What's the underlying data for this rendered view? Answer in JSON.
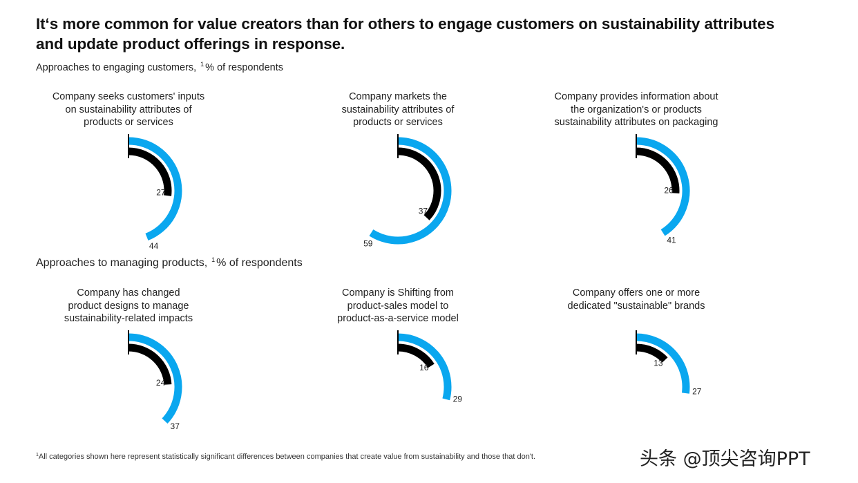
{
  "title_lines": [
    "It‘s more common for value creators than for others to engage customers on sustainability attributes",
    "and update product offerings in response."
  ],
  "section1": {
    "label": "Approaches to engaging customers,",
    "sup": "1",
    "suffix": "% of respondents"
  },
  "section2": {
    "label": "Approaches to managing products,",
    "sup": "1",
    "suffix": "% of respondents"
  },
  "colors": {
    "value_creators": "#0aa7ef",
    "others": "#000000"
  },
  "chart_data": [
    {
      "type": "donut",
      "title_lines": [
        "Company seeks customers' inputs",
        "on sustainability attributes of",
        "products or services"
      ],
      "outer_value": 44,
      "inner_value": 27
    },
    {
      "type": "donut",
      "title_lines": [
        "Company markets the",
        "sustainability attributes of",
        "products or services"
      ],
      "outer_value": 59,
      "inner_value": 37
    },
    {
      "type": "donut",
      "title_lines": [
        "Company provides information about",
        "the organization's or products",
        "sustainability attributes on packaging"
      ],
      "outer_value": 41,
      "inner_value": 26
    },
    {
      "type": "donut",
      "title_lines": [
        "Company has changed",
        "product designs to manage",
        "sustainability-related impacts"
      ],
      "outer_value": 37,
      "inner_value": 24
    },
    {
      "type": "donut",
      "title_lines": [
        "Company is Shifting from",
        "product-sales model to",
        "product-as-a-service model"
      ],
      "outer_value": 29,
      "inner_value": 16
    },
    {
      "type": "donut",
      "title_lines": [
        "Company offers one or more",
        "dedicated \"sustainable\" brands"
      ],
      "outer_value": 27,
      "inner_value": 13
    }
  ],
  "footnote": {
    "sup": "1",
    "text": "All categories shown here represent statistically significant differences between companies that create value from sustainability and those that don't."
  },
  "watermark": "头条 @顶尖咨询PPT"
}
